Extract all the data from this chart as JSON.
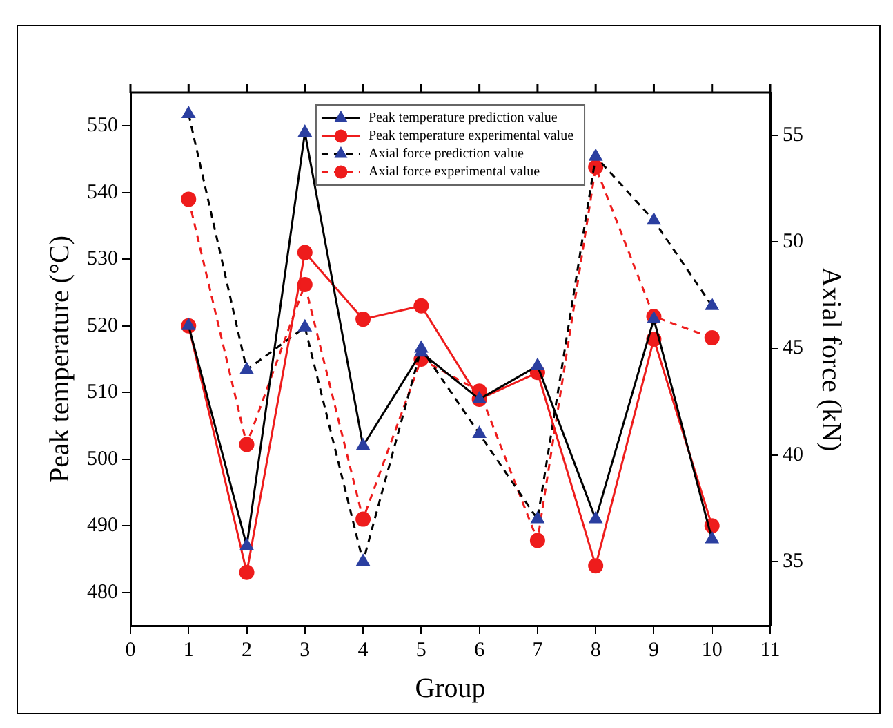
{
  "chart_data": {
    "type": "line",
    "xlabel": "Group",
    "ylabel": "Peak temperature (°C)",
    "y2label": "Axial force (kN)",
    "x": [
      1,
      2,
      3,
      4,
      5,
      6,
      7,
      8,
      9,
      10
    ],
    "xlim": [
      0,
      11
    ],
    "xticks": [
      0,
      1,
      2,
      3,
      4,
      5,
      6,
      7,
      8,
      9,
      10,
      11
    ],
    "ylim": [
      475,
      555
    ],
    "yticks": [
      480,
      490,
      500,
      510,
      520,
      530,
      540,
      550
    ],
    "y2lim": [
      32,
      57
    ],
    "y2ticks": [
      35,
      40,
      45,
      50,
      55
    ],
    "grid": false,
    "legend": "top",
    "marker": "circle",
    "series": [
      {
        "name": "Peak temperature prediction value",
        "color": "#000000",
        "marker": "triangle",
        "colors": [
          "#2b3fa0",
          "#2b3fa0",
          "#2b3fa0",
          "#2b3fa0",
          "#2b3fa0",
          "#2b3fa0",
          "#2b3fa0",
          "#2b3fa0",
          "#2b3fa0",
          "#2b3fa0"
        ],
        "line_style": "solid",
        "values": [
          520,
          487,
          549,
          502,
          516,
          509,
          514,
          491,
          521,
          488
        ]
      },
      {
        "name": "Peak temperature experimental value",
        "color": "#ee1c1c",
        "line_style": "solid",
        "values": [
          520,
          483,
          531,
          521,
          523,
          509,
          513,
          484,
          518,
          490
        ]
      },
      {
        "name": "Axial force prediction value",
        "color": "#000000",
        "marker": "triangle",
        "colors": [
          "#2b3fa0",
          "#2b3fa0",
          "#2b3fa0",
          "#2b3fa0",
          "#2b3fa0",
          "#2b3fa0",
          "#2b3fa0",
          "#2b3fa0",
          "#2b3fa0",
          "#2b3fa0"
        ],
        "line_style": "dashed",
        "axis": "y2",
        "values": [
          56,
          44,
          46,
          35,
          45,
          41,
          37,
          54,
          51,
          47
        ]
      },
      {
        "name": "Axial force experimental value",
        "color": "#ee1c1c",
        "line_style": "dashed",
        "axis": "y2",
        "values": [
          52,
          40.5,
          48,
          37,
          44.5,
          43,
          36,
          53.5,
          46.5,
          45.5
        ]
      }
    ]
  }
}
